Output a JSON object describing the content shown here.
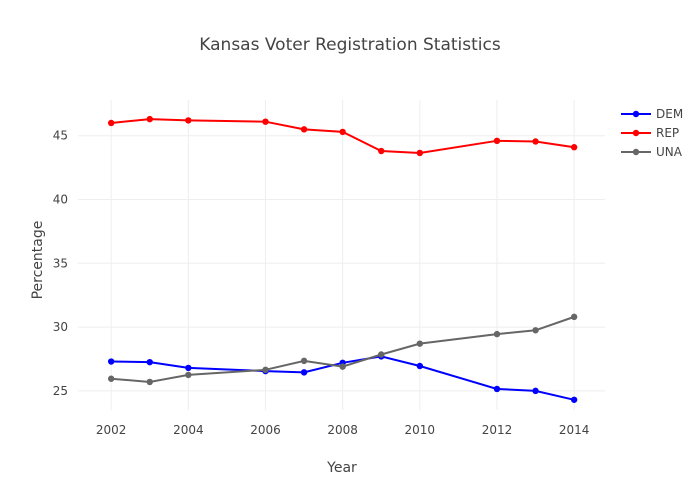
{
  "chart_data": {
    "type": "line",
    "title": "Kansas Voter Registration Statistics",
    "xlabel": "Year",
    "ylabel": "Percentage",
    "x": [
      2002,
      2003,
      2004,
      2006,
      2007,
      2008,
      2009,
      2010,
      2012,
      2013,
      2014
    ],
    "xlim": [
      2001.14,
      2014.8
    ],
    "ylim": [
      23.5,
      47.8
    ],
    "xticks": [
      2002,
      2004,
      2006,
      2008,
      2010,
      2012,
      2014
    ],
    "yticks": [
      25,
      30,
      35,
      40,
      45
    ],
    "grid": true,
    "legend": "top-right",
    "series": [
      {
        "name": "DEM",
        "color": "#0000ff",
        "values": [
          27.3,
          27.25,
          26.8,
          26.55,
          26.45,
          27.2,
          27.7,
          26.95,
          25.15,
          25.0,
          24.3
        ]
      },
      {
        "name": "REP",
        "color": "#ff0000",
        "values": [
          46.0,
          46.3,
          46.2,
          46.1,
          45.5,
          45.3,
          43.8,
          43.65,
          44.6,
          44.55,
          44.1
        ]
      },
      {
        "name": "UNA",
        "color": "#666666",
        "values": [
          25.95,
          25.7,
          26.25,
          26.65,
          27.35,
          26.9,
          27.85,
          28.7,
          29.45,
          29.75,
          30.8
        ]
      }
    ]
  }
}
